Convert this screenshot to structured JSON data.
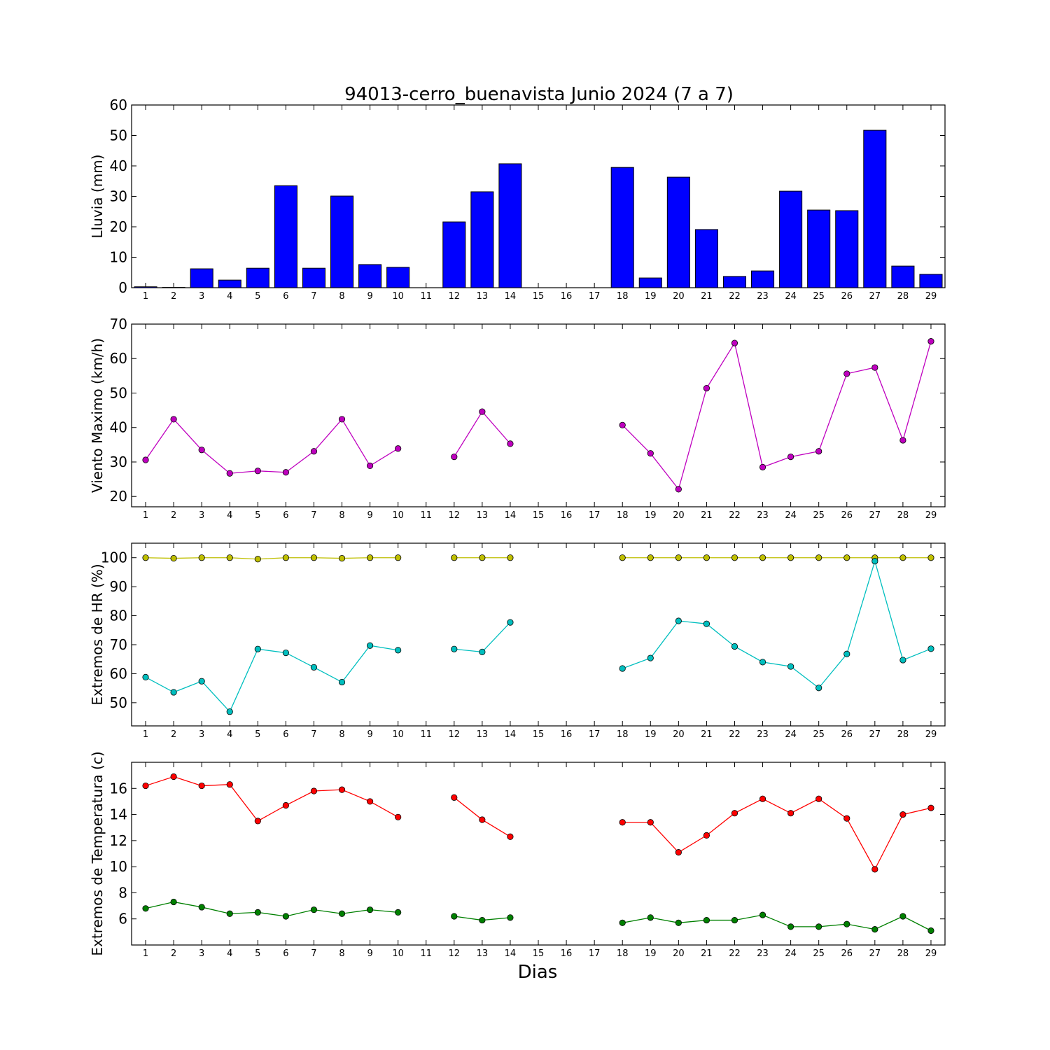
{
  "chart_data": {
    "title": "94013-cerro_buenavista Junio 2024  (7 a 7)",
    "xlabel": "Dias",
    "days": [
      1,
      2,
      3,
      4,
      5,
      6,
      7,
      8,
      9,
      10,
      11,
      12,
      13,
      14,
      15,
      16,
      17,
      18,
      19,
      20,
      21,
      22,
      23,
      24,
      25,
      26,
      27,
      28,
      29
    ],
    "panels": [
      {
        "type": "bar",
        "ylabel": "Lluvia (mm)",
        "ylim": [
          0,
          60
        ],
        "yticks": [
          0,
          10,
          20,
          30,
          40,
          50,
          60
        ],
        "series": [
          {
            "color": "#0000ff",
            "values": [
              0.3,
              0.1,
              6.2,
              2.5,
              6.4,
              33.5,
              6.4,
              30.1,
              7.6,
              6.7,
              0,
              21.6,
              31.5,
              40.7,
              0,
              0,
              0,
              39.5,
              3.2,
              36.3,
              19.1,
              3.7,
              5.5,
              31.7,
              25.5,
              25.3,
              51.7,
              7.1,
              4.4
            ]
          }
        ]
      },
      {
        "type": "line",
        "ylabel": "Viento Maximo (km/h)",
        "ylim": [
          17,
          70
        ],
        "yticks": [
          20,
          30,
          40,
          50,
          60,
          70
        ],
        "series": [
          {
            "color": "#bf00bf",
            "values": [
              30.6,
              42.4,
              33.5,
              26.7,
              27.4,
              27.0,
              33.1,
              42.4,
              28.9,
              33.9,
              null,
              31.5,
              44.6,
              35.3,
              null,
              null,
              null,
              40.7,
              32.5,
              22.1,
              51.4,
              64.5,
              28.5,
              31.5,
              33.1,
              55.6,
              57.4,
              36.3,
              65.0
            ]
          }
        ]
      },
      {
        "type": "line",
        "ylabel": "Extremos de HR (%)",
        "ylim": [
          42,
          105
        ],
        "yticks": [
          50,
          60,
          70,
          80,
          90,
          100
        ],
        "series": [
          {
            "color": "#bfbf00",
            "values": [
              100,
              99.8,
              100,
              100,
              99.5,
              100,
              100,
              99.8,
              100,
              100,
              null,
              100,
              100,
              100,
              null,
              null,
              null,
              100,
              100,
              100,
              100,
              100,
              100,
              100,
              100,
              100,
              100,
              100,
              100
            ]
          },
          {
            "color": "#00bfbf",
            "values": [
              58.8,
              53.6,
              57.4,
              46.9,
              68.5,
              67.2,
              62.2,
              57.1,
              69.7,
              68.1,
              null,
              68.5,
              67.5,
              77.7,
              null,
              null,
              null,
              61.8,
              65.4,
              78.2,
              77.2,
              69.4,
              64.0,
              62.5,
              55.1,
              66.8,
              98.8,
              64.7,
              68.6
            ]
          }
        ]
      },
      {
        "type": "line",
        "ylabel": "Extremos de Temperatura (c)",
        "ylim": [
          4,
          18
        ],
        "yticks": [
          6,
          8,
          10,
          12,
          14,
          16
        ],
        "series": [
          {
            "color": "#ff0000",
            "values": [
              16.2,
              16.9,
              16.2,
              16.3,
              13.5,
              14.7,
              15.8,
              15.9,
              15.0,
              13.8,
              null,
              15.3,
              13.6,
              12.3,
              null,
              null,
              null,
              13.4,
              13.4,
              11.1,
              12.4,
              14.1,
              15.2,
              14.1,
              15.2,
              13.7,
              9.8,
              14.0,
              14.5
            ]
          },
          {
            "color": "#008000",
            "values": [
              6.8,
              7.3,
              6.9,
              6.4,
              6.5,
              6.2,
              6.7,
              6.4,
              6.7,
              6.5,
              null,
              6.2,
              5.9,
              6.1,
              null,
              null,
              null,
              5.7,
              6.1,
              5.7,
              5.9,
              5.9,
              6.3,
              5.4,
              5.4,
              5.6,
              5.2,
              6.2,
              5.1
            ]
          }
        ]
      }
    ]
  }
}
